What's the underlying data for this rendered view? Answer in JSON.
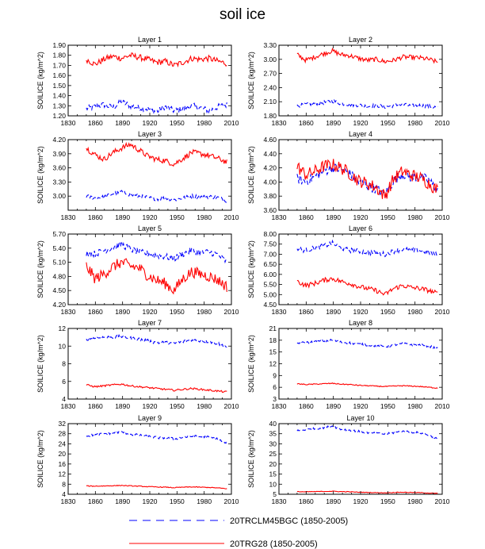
{
  "figure_title": "soil ice",
  "chart_data": [
    {
      "type": "line",
      "title": "Layer 1",
      "ylabel": "SOILICE  (kg/m^2)",
      "xlim": [
        1830,
        2010
      ],
      "xticks": [
        1830,
        1860,
        1890,
        1920,
        1950,
        1980,
        2010
      ],
      "ylim": [
        1.2,
        1.9
      ],
      "yticks": [
        1.2,
        1.3,
        1.4,
        1.5,
        1.6,
        1.7,
        1.8,
        1.9
      ],
      "ytick_labels": [
        "1.20",
        "1.30",
        "1.40",
        "1.50",
        "1.60",
        "1.70",
        "1.80",
        "1.90"
      ],
      "series": [
        {
          "name": "20TRCLM45BGC (1850-2005)",
          "color": "#0000ff",
          "dash": true,
          "x_start": 1850,
          "x_end": 2005,
          "anchors": [
            1.27,
            1.29,
            1.31,
            1.28,
            1.34,
            1.3,
            1.28,
            1.27,
            1.24,
            1.29,
            1.25,
            1.27,
            1.3,
            1.28,
            1.25,
            1.29,
            1.31
          ],
          "amp": 0.03
        },
        {
          "name": "20TRG28 (1850-2005)",
          "color": "#ff0000",
          "dash": false,
          "x_start": 1850,
          "x_end": 2005,
          "anchors": [
            1.76,
            1.71,
            1.76,
            1.79,
            1.77,
            1.8,
            1.78,
            1.76,
            1.73,
            1.74,
            1.7,
            1.73,
            1.77,
            1.76,
            1.77,
            1.74,
            1.72
          ],
          "amp": 0.03
        }
      ]
    },
    {
      "type": "line",
      "title": "Layer 2",
      "ylabel": "SOILICE  (kg/m^2)",
      "xlim": [
        1830,
        2010
      ],
      "xticks": [
        1830,
        1860,
        1890,
        1920,
        1950,
        1980,
        2010
      ],
      "ylim": [
        1.8,
        3.3
      ],
      "yticks": [
        1.8,
        2.1,
        2.4,
        2.7,
        3.0,
        3.3
      ],
      "ytick_labels": [
        "1.80",
        "2.10",
        "2.40",
        "2.70",
        "3.00",
        "3.30"
      ],
      "series": [
        {
          "name": "20TRCLM45BGC (1850-2005)",
          "color": "#0000ff",
          "dash": true,
          "x_start": 1850,
          "x_end": 2005,
          "anchors": [
            2.01,
            2.04,
            2.06,
            2.08,
            2.12,
            2.06,
            2.04,
            2.03,
            2.0,
            2.02,
            1.99,
            2.02,
            2.04,
            2.01,
            2.02,
            2.0,
            1.98
          ],
          "amp": 0.04
        },
        {
          "name": "20TRG28 (1850-2005)",
          "color": "#ff0000",
          "dash": false,
          "x_start": 1850,
          "x_end": 2005,
          "anchors": [
            3.1,
            2.98,
            3.05,
            3.12,
            3.18,
            3.1,
            3.08,
            3.02,
            2.98,
            3.0,
            2.95,
            2.98,
            3.05,
            3.04,
            3.03,
            3.0,
            2.94
          ],
          "amp": 0.05
        }
      ]
    },
    {
      "type": "line",
      "title": "Layer 3",
      "ylabel": "SOILICE  (kg/m^2)",
      "xlim": [
        1830,
        2010
      ],
      "xticks": [
        1830,
        1860,
        1890,
        1920,
        1950,
        1980,
        2010
      ],
      "ylim": [
        2.7,
        4.2
      ],
      "yticks": [
        3.0,
        3.3,
        3.6,
        3.9,
        4.2
      ],
      "ytick_labels": [
        "3.00",
        "3.30",
        "3.60",
        "3.90",
        "4.20"
      ],
      "series": [
        {
          "name": "20TRCLM45BGC (1850-2005)",
          "color": "#0000ff",
          "dash": true,
          "x_start": 1850,
          "x_end": 2005,
          "anchors": [
            3.0,
            2.96,
            2.98,
            3.05,
            3.1,
            3.02,
            3.0,
            2.97,
            2.94,
            2.96,
            2.92,
            2.96,
            3.0,
            2.98,
            2.99,
            2.97,
            2.9
          ],
          "amp": 0.04
        },
        {
          "name": "20TRG28 (1850-2005)",
          "color": "#ff0000",
          "dash": false,
          "x_start": 1850,
          "x_end": 2005,
          "anchors": [
            4.02,
            3.88,
            3.78,
            3.92,
            4.02,
            4.1,
            3.98,
            3.85,
            3.78,
            3.75,
            3.68,
            3.8,
            3.93,
            3.9,
            3.86,
            3.8,
            3.72
          ],
          "amp": 0.06
        }
      ]
    },
    {
      "type": "line",
      "title": "Layer 4",
      "ylabel": "SOILICE  (kg/m^2)",
      "xlim": [
        1830,
        2010
      ],
      "xticks": [
        1830,
        1860,
        1890,
        1920,
        1950,
        1980,
        2010
      ],
      "ylim": [
        3.6,
        4.6
      ],
      "yticks": [
        3.6,
        3.8,
        4.0,
        4.2,
        4.4,
        4.6
      ],
      "ytick_labels": [
        "3.60",
        "3.80",
        "4.00",
        "4.20",
        "4.40",
        "4.60"
      ],
      "series": [
        {
          "name": "20TRCLM45BGC (1850-2005)",
          "color": "#0000ff",
          "dash": true,
          "x_start": 1850,
          "x_end": 2005,
          "anchors": [
            4.05,
            4.0,
            4.08,
            4.15,
            4.2,
            4.18,
            4.12,
            4.0,
            3.95,
            3.9,
            3.82,
            4.02,
            4.12,
            4.06,
            4.08,
            4.02,
            3.88
          ],
          "amp": 0.07
        },
        {
          "name": "20TRG28 (1850-2005)",
          "color": "#ff0000",
          "dash": false,
          "x_start": 1850,
          "x_end": 2005,
          "anchors": [
            4.22,
            4.1,
            4.15,
            4.22,
            4.25,
            4.2,
            4.12,
            4.02,
            3.98,
            3.92,
            3.8,
            4.05,
            4.15,
            4.1,
            4.06,
            3.98,
            3.88
          ],
          "amp": 0.09
        }
      ]
    },
    {
      "type": "line",
      "title": "Layer 5",
      "ylabel": "SOILICE  (kg/m^2)",
      "xlim": [
        1830,
        2010
      ],
      "xticks": [
        1830,
        1860,
        1890,
        1920,
        1950,
        1980,
        2010
      ],
      "ylim": [
        4.2,
        5.7
      ],
      "yticks": [
        4.2,
        4.5,
        4.8,
        5.1,
        5.4,
        5.7
      ],
      "ytick_labels": [
        "4.20",
        "4.50",
        "4.80",
        "5.10",
        "5.40",
        "5.70"
      ],
      "series": [
        {
          "name": "20TRCLM45BGC (1850-2005)",
          "color": "#0000ff",
          "dash": true,
          "x_start": 1850,
          "x_end": 2005,
          "anchors": [
            5.3,
            5.28,
            5.35,
            5.42,
            5.48,
            5.38,
            5.32,
            5.28,
            5.25,
            5.22,
            5.18,
            5.28,
            5.35,
            5.3,
            5.32,
            5.26,
            5.1
          ],
          "amp": 0.07
        },
        {
          "name": "20TRG28 (1850-2005)",
          "color": "#ff0000",
          "dash": false,
          "x_start": 1850,
          "x_end": 2005,
          "anchors": [
            5.02,
            4.75,
            4.85,
            5.0,
            5.1,
            5.02,
            4.98,
            4.82,
            4.72,
            4.65,
            4.5,
            4.75,
            4.9,
            4.85,
            4.8,
            4.72,
            4.58
          ],
          "amp": 0.12
        }
      ]
    },
    {
      "type": "line",
      "title": "Layer 6",
      "ylabel": "SOILICE  (kg/m^2)",
      "xlim": [
        1830,
        2010
      ],
      "xticks": [
        1830,
        1860,
        1890,
        1920,
        1950,
        1980,
        2010
      ],
      "ylim": [
        4.5,
        8.0
      ],
      "yticks": [
        4.5,
        5.0,
        5.5,
        6.0,
        6.5,
        7.0,
        7.5,
        8.0
      ],
      "ytick_labels": [
        "4.50",
        "5.00",
        "5.50",
        "6.00",
        "6.50",
        "7.00",
        "7.50",
        "8.00"
      ],
      "series": [
        {
          "name": "20TRCLM45BGC (1850-2005)",
          "color": "#0000ff",
          "dash": true,
          "x_start": 1850,
          "x_end": 2005,
          "anchors": [
            7.25,
            7.2,
            7.3,
            7.4,
            7.55,
            7.3,
            7.2,
            7.15,
            7.1,
            7.05,
            7.0,
            7.15,
            7.25,
            7.2,
            7.18,
            7.1,
            6.95
          ],
          "amp": 0.12
        },
        {
          "name": "20TRG28 (1850-2005)",
          "color": "#ff0000",
          "dash": false,
          "x_start": 1850,
          "x_end": 2005,
          "anchors": [
            5.65,
            5.45,
            5.55,
            5.7,
            5.8,
            5.65,
            5.55,
            5.4,
            5.3,
            5.2,
            5.0,
            5.3,
            5.45,
            5.35,
            5.3,
            5.2,
            5.05
          ],
          "amp": 0.12
        }
      ]
    },
    {
      "type": "line",
      "title": "Layer 7",
      "ylabel": "SOILICE  (kg/m^2)",
      "xlim": [
        1830,
        2010
      ],
      "xticks": [
        1830,
        1860,
        1890,
        1920,
        1950,
        1980,
        2010
      ],
      "ylim": [
        4,
        12
      ],
      "yticks": [
        4,
        6,
        8,
        10,
        12
      ],
      "ytick_labels": [
        "4",
        "6",
        "8",
        "10",
        "12"
      ],
      "series": [
        {
          "name": "20TRCLM45BGC (1850-2005)",
          "color": "#0000ff",
          "dash": true,
          "x_start": 1850,
          "x_end": 2005,
          "anchors": [
            10.8,
            10.9,
            11.0,
            11.0,
            11.1,
            10.9,
            10.8,
            10.6,
            10.4,
            10.4,
            10.3,
            10.5,
            10.7,
            10.6,
            10.5,
            10.3,
            9.9
          ],
          "amp": 0.18
        },
        {
          "name": "20TRG28 (1850-2005)",
          "color": "#ff0000",
          "dash": false,
          "x_start": 1850,
          "x_end": 2005,
          "anchors": [
            5.6,
            5.4,
            5.5,
            5.6,
            5.7,
            5.5,
            5.4,
            5.3,
            5.2,
            5.1,
            5.0,
            5.1,
            5.2,
            5.1,
            5.0,
            4.9,
            4.8
          ],
          "amp": 0.1
        }
      ]
    },
    {
      "type": "line",
      "title": "Layer 8",
      "ylabel": "SOILICE  (kg/m^2)",
      "xlim": [
        1830,
        2010
      ],
      "xticks": [
        1830,
        1860,
        1890,
        1920,
        1950,
        1980,
        2010
      ],
      "ylim": [
        3,
        21
      ],
      "yticks": [
        3,
        6,
        9,
        12,
        15,
        18,
        21
      ],
      "ytick_labels": [
        "3",
        "6",
        "9",
        "12",
        "15",
        "18",
        "21"
      ],
      "series": [
        {
          "name": "20TRCLM45BGC (1850-2005)",
          "color": "#0000ff",
          "dash": true,
          "x_start": 1850,
          "x_end": 2005,
          "anchors": [
            17.2,
            17.4,
            17.6,
            17.8,
            18.0,
            17.5,
            17.3,
            17.0,
            16.8,
            16.6,
            16.3,
            16.8,
            17.1,
            16.9,
            16.8,
            16.5,
            15.8
          ],
          "amp": 0.3
        },
        {
          "name": "20TRG28 (1850-2005)",
          "color": "#ff0000",
          "dash": false,
          "x_start": 1850,
          "x_end": 2005,
          "anchors": [
            6.9,
            6.7,
            6.8,
            6.9,
            7.0,
            6.8,
            6.7,
            6.5,
            6.4,
            6.3,
            6.2,
            6.3,
            6.4,
            6.3,
            6.2,
            6.0,
            5.8
          ],
          "amp": 0.12
        }
      ]
    },
    {
      "type": "line",
      "title": "Layer 9",
      "ylabel": "SOILICE  (kg/m^2)",
      "xlim": [
        1830,
        2010
      ],
      "xticks": [
        1830,
        1860,
        1890,
        1920,
        1950,
        1980,
        2010
      ],
      "ylim": [
        4,
        32
      ],
      "yticks": [
        4,
        8,
        12,
        16,
        20,
        24,
        28,
        32
      ],
      "ytick_labels": [
        "4",
        "8",
        "12",
        "16",
        "20",
        "24",
        "28",
        "32"
      ],
      "series": [
        {
          "name": "20TRCLM45BGC (1850-2005)",
          "color": "#0000ff",
          "dash": true,
          "x_start": 1850,
          "x_end": 2005,
          "anchors": [
            27.2,
            27.5,
            28.0,
            28.3,
            28.8,
            27.8,
            27.4,
            26.9,
            26.5,
            26.3,
            26.0,
            26.6,
            27.0,
            26.8,
            26.6,
            25.8,
            24.0
          ],
          "amp": 0.5
        },
        {
          "name": "20TRG28 (1850-2005)",
          "color": "#ff0000",
          "dash": false,
          "x_start": 1850,
          "x_end": 2005,
          "anchors": [
            7.3,
            7.2,
            7.3,
            7.4,
            7.5,
            7.3,
            7.2,
            7.0,
            6.9,
            6.8,
            6.6,
            6.8,
            6.9,
            6.8,
            6.7,
            6.5,
            6.2
          ],
          "amp": 0.15
        }
      ]
    },
    {
      "type": "line",
      "title": "Layer 10",
      "ylabel": "SOILICE  (kg/m^2)",
      "xlim": [
        1830,
        2010
      ],
      "xticks": [
        1830,
        1860,
        1890,
        1920,
        1950,
        1980,
        2010
      ],
      "ylim": [
        5,
        40
      ],
      "yticks": [
        5,
        10,
        15,
        20,
        25,
        30,
        35,
        40
      ],
      "ytick_labels": [
        "5",
        "10",
        "15",
        "20",
        "25",
        "30",
        "35",
        "40"
      ],
      "series": [
        {
          "name": "20TRCLM45BGC (1850-2005)",
          "color": "#0000ff",
          "dash": true,
          "x_start": 1850,
          "x_end": 2005,
          "anchors": [
            36.5,
            37.0,
            37.5,
            38.0,
            38.8,
            37.2,
            36.8,
            36.2,
            35.5,
            35.2,
            34.8,
            35.5,
            36.2,
            35.8,
            35.5,
            34.2,
            32.5
          ],
          "amp": 0.5
        },
        {
          "name": "20TRG28 (1850-2005)",
          "color": "#ff0000",
          "dash": false,
          "x_start": 1850,
          "x_end": 2005,
          "anchors": [
            6.3,
            6.2,
            6.3,
            6.4,
            6.5,
            6.3,
            6.2,
            6.0,
            5.9,
            5.8,
            5.7,
            5.9,
            6.0,
            5.9,
            5.8,
            5.6,
            5.4
          ],
          "amp": 0.15
        }
      ]
    }
  ],
  "legend": [
    {
      "label": "20TRCLM45BGC (1850-2005)",
      "color": "#0000ff",
      "dash": true
    },
    {
      "label": "20TRG28 (1850-2005)",
      "color": "#ff0000",
      "dash": false
    }
  ]
}
